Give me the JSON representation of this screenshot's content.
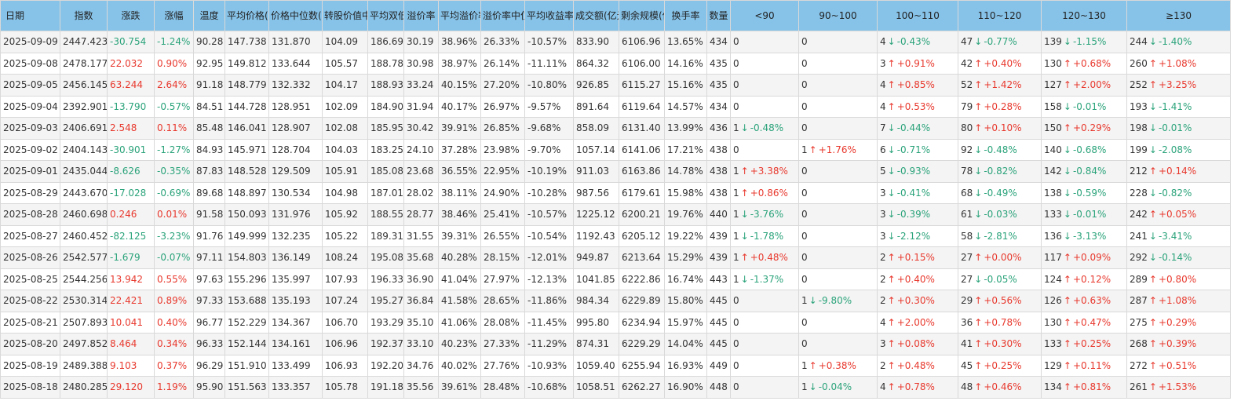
{
  "colors": {
    "header_bg": "#87c3e9",
    "up": "#e8392e",
    "down": "#2ba37b"
  },
  "arrows": {
    "up": "↑",
    "down": "↓"
  },
  "headers": [
    "日期",
    "指数",
    "涨跌",
    "涨幅",
    "温度",
    "平均价格(元)",
    "价格中位数(元)",
    "转股价值中位数",
    "平均双低",
    "溢价率",
    "平均溢价率",
    "溢价率中位数",
    "平均收益率",
    "成交额(亿元)",
    "剩余规模(亿元)",
    "换手率",
    "数量",
    "<90",
    "90~100",
    "100~110",
    "110~120",
    "120~130",
    "≥130"
  ],
  "rows": [
    [
      "2025-09-09",
      "2447.423",
      "-30.754",
      "-1.24%",
      "90.28",
      "147.738",
      "131.870",
      "104.09",
      "186.69",
      "30.19",
      "38.96%",
      "26.33%",
      "-10.57%",
      "833.90",
      "6106.96",
      "13.65%",
      "434",
      "0",
      "0",
      "4|-0.43%",
      "47|-0.77%",
      "139|-1.15%",
      "244|-1.40%"
    ],
    [
      "2025-09-08",
      "2478.177",
      "22.032",
      "0.90%",
      "92.95",
      "149.812",
      "133.644",
      "105.57",
      "188.78",
      "30.98",
      "38.97%",
      "26.14%",
      "-11.11%",
      "864.32",
      "6106.00",
      "14.16%",
      "435",
      "0",
      "0",
      "3|+0.91%",
      "42|+0.40%",
      "130|+0.68%",
      "260|+1.08%"
    ],
    [
      "2025-09-05",
      "2456.145",
      "63.244",
      "2.64%",
      "91.18",
      "148.779",
      "132.332",
      "104.17",
      "188.93",
      "33.24",
      "40.15%",
      "27.20%",
      "-10.80%",
      "926.85",
      "6115.27",
      "15.16%",
      "435",
      "0",
      "0",
      "4|+0.85%",
      "52|+1.42%",
      "127|+2.00%",
      "252|+3.25%"
    ],
    [
      "2025-09-04",
      "2392.901",
      "-13.790",
      "-0.57%",
      "84.51",
      "144.728",
      "128.951",
      "102.09",
      "184.90",
      "31.94",
      "40.17%",
      "26.97%",
      "-9.57%",
      "891.64",
      "6119.64",
      "14.57%",
      "434",
      "0",
      "0",
      "4|+0.53%",
      "79|+0.28%",
      "158|-0.01%",
      "193|-1.41%"
    ],
    [
      "2025-09-03",
      "2406.691",
      "2.548",
      "0.11%",
      "85.48",
      "146.041",
      "128.907",
      "102.08",
      "185.95",
      "30.42",
      "39.91%",
      "26.85%",
      "-9.68%",
      "858.09",
      "6131.40",
      "13.99%",
      "436",
      "1|-0.48%",
      "0",
      "7|-0.44%",
      "80|+0.10%",
      "150|+0.29%",
      "198|-0.01%"
    ],
    [
      "2025-09-02",
      "2404.143",
      "-30.901",
      "-1.27%",
      "84.93",
      "145.971",
      "128.704",
      "104.03",
      "183.25",
      "24.10",
      "37.28%",
      "23.98%",
      "-9.70%",
      "1057.14",
      "6141.06",
      "17.21%",
      "438",
      "0",
      "1|+1.76%",
      "6|-0.71%",
      "92|-0.48%",
      "140|-0.68%",
      "199|-2.08%"
    ],
    [
      "2025-09-01",
      "2435.044",
      "-8.626",
      "-0.35%",
      "87.83",
      "148.528",
      "129.509",
      "105.91",
      "185.08",
      "23.68",
      "36.55%",
      "22.95%",
      "-10.19%",
      "911.03",
      "6163.86",
      "14.78%",
      "438",
      "1|+3.38%",
      "0",
      "5|-0.93%",
      "78|-0.82%",
      "142|-0.84%",
      "212|+0.14%"
    ],
    [
      "2025-08-29",
      "2443.670",
      "-17.028",
      "-0.69%",
      "89.68",
      "148.897",
      "130.534",
      "104.98",
      "187.01",
      "28.02",
      "38.11%",
      "24.90%",
      "-10.28%",
      "987.56",
      "6179.61",
      "15.98%",
      "438",
      "1|+0.86%",
      "0",
      "3|-0.41%",
      "68|-0.49%",
      "138|-0.59%",
      "228|-0.82%"
    ],
    [
      "2025-08-28",
      "2460.698",
      "0.246",
      "0.01%",
      "91.58",
      "150.093",
      "131.976",
      "105.92",
      "188.55",
      "28.77",
      "38.46%",
      "25.41%",
      "-10.57%",
      "1225.12",
      "6200.21",
      "19.76%",
      "440",
      "1|-3.76%",
      "0",
      "3|-0.39%",
      "61|-0.03%",
      "133|-0.01%",
      "242|+0.05%"
    ],
    [
      "2025-08-27",
      "2460.452",
      "-82.125",
      "-3.23%",
      "91.76",
      "149.999",
      "132.235",
      "105.22",
      "189.31",
      "31.55",
      "39.31%",
      "26.55%",
      "-10.54%",
      "1192.43",
      "6205.12",
      "19.22%",
      "439",
      "1|-1.78%",
      "0",
      "3|-2.12%",
      "58|-2.81%",
      "136|-3.13%",
      "241|-3.41%"
    ],
    [
      "2025-08-26",
      "2542.577",
      "-1.679",
      "-0.07%",
      "97.11",
      "154.803",
      "136.149",
      "108.24",
      "195.08",
      "35.68",
      "40.28%",
      "28.15%",
      "-12.01%",
      "949.87",
      "6213.64",
      "15.29%",
      "439",
      "1|+0.48%",
      "0",
      "2|+0.15%",
      "27|+0.00%",
      "117|+0.09%",
      "292|-0.14%"
    ],
    [
      "2025-08-25",
      "2544.256",
      "13.942",
      "0.55%",
      "97.63",
      "155.296",
      "135.997",
      "107.93",
      "196.33",
      "36.90",
      "41.04%",
      "27.97%",
      "-12.13%",
      "1041.85",
      "6222.86",
      "16.74%",
      "443",
      "1|-1.37%",
      "0",
      "2|+0.40%",
      "27|-0.05%",
      "124|+0.12%",
      "289|+0.80%"
    ],
    [
      "2025-08-22",
      "2530.314",
      "22.421",
      "0.89%",
      "97.33",
      "153.688",
      "135.193",
      "107.24",
      "195.27",
      "36.84",
      "41.58%",
      "28.65%",
      "-11.86%",
      "984.34",
      "6229.89",
      "15.80%",
      "445",
      "0",
      "1|-9.80%",
      "2|+0.30%",
      "29|+0.56%",
      "126|+0.63%",
      "287|+1.08%"
    ],
    [
      "2025-08-21",
      "2507.893",
      "10.041",
      "0.40%",
      "96.77",
      "152.229",
      "134.367",
      "106.70",
      "193.29",
      "35.10",
      "41.06%",
      "28.08%",
      "-11.45%",
      "995.80",
      "6234.94",
      "15.97%",
      "445",
      "0",
      "0",
      "4|+2.00%",
      "36|+0.78%",
      "130|+0.47%",
      "275|+0.29%"
    ],
    [
      "2025-08-20",
      "2497.852",
      "8.464",
      "0.34%",
      "96.33",
      "152.144",
      "134.161",
      "106.96",
      "192.37",
      "33.10",
      "40.23%",
      "27.33%",
      "-11.29%",
      "874.31",
      "6229.29",
      "14.04%",
      "445",
      "0",
      "0",
      "3|+0.08%",
      "41|+0.30%",
      "133|+0.25%",
      "268|+0.39%"
    ],
    [
      "2025-08-19",
      "2489.388",
      "9.103",
      "0.37%",
      "96.29",
      "151.910",
      "133.499",
      "106.93",
      "192.20",
      "34.76",
      "40.02%",
      "27.76%",
      "-10.93%",
      "1059.40",
      "6255.94",
      "16.93%",
      "449",
      "0",
      "1|+0.38%",
      "2|+0.48%",
      "45|+0.25%",
      "129|+0.11%",
      "272|+0.51%"
    ],
    [
      "2025-08-18",
      "2480.285",
      "29.120",
      "1.19%",
      "95.90",
      "151.563",
      "133.357",
      "105.78",
      "191.18",
      "35.56",
      "39.61%",
      "28.48%",
      "-10.68%",
      "1058.51",
      "6262.27",
      "16.90%",
      "448",
      "0",
      "1|-0.04%",
      "4|+0.78%",
      "48|+0.46%",
      "134|+0.81%",
      "261|+1.53%"
    ]
  ]
}
